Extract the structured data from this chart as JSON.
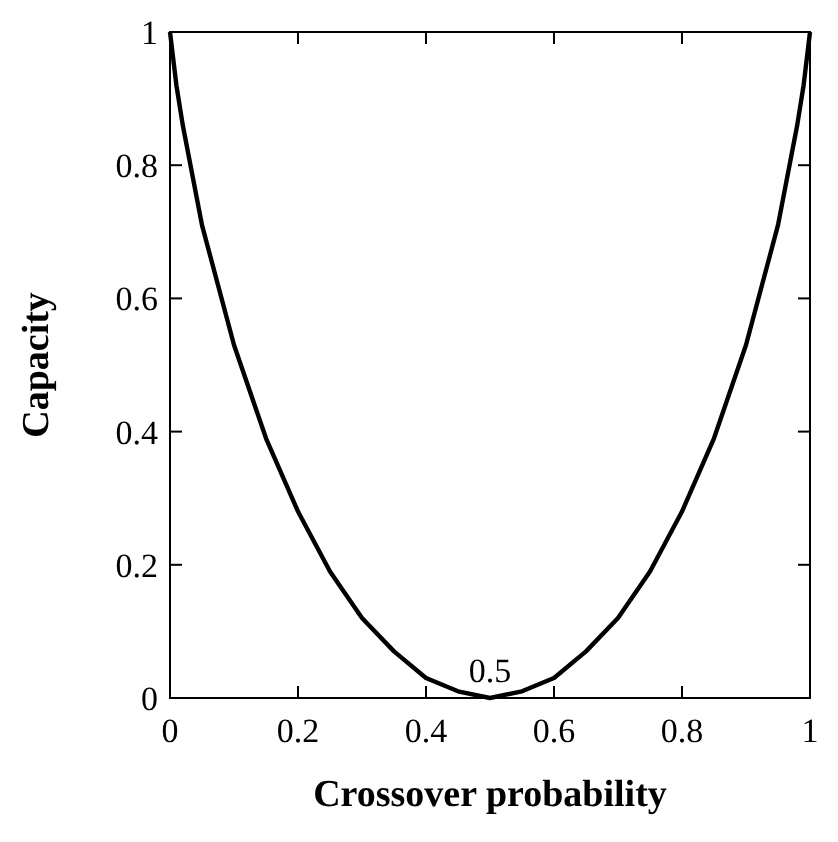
{
  "chart_data": {
    "type": "line",
    "xlabel": "Crossover probability",
    "ylabel": "Capacity",
    "x": [
      0,
      0.01,
      0.02,
      0.05,
      0.1,
      0.15,
      0.2,
      0.25,
      0.3,
      0.35,
      0.4,
      0.45,
      0.5,
      0.55,
      0.6,
      0.65,
      0.7,
      0.75,
      0.8,
      0.85,
      0.9,
      0.95,
      0.98,
      0.99,
      1
    ],
    "series": [
      {
        "color": "#000000",
        "values": [
          1,
          0.92,
          0.86,
          0.71,
          0.53,
          0.39,
          0.28,
          0.19,
          0.12,
          0.07,
          0.03,
          0.01,
          0,
          0.01,
          0.03,
          0.07,
          0.12,
          0.19,
          0.28,
          0.39,
          0.53,
          0.71,
          0.86,
          0.92,
          1
        ]
      }
    ],
    "xlim": [
      0,
      1
    ],
    "ylim": [
      0,
      1
    ],
    "xticks": [
      0,
      0.2,
      0.4,
      0.6,
      0.8,
      1
    ],
    "yticks": [
      0,
      0.2,
      0.4,
      0.6,
      0.8,
      1
    ],
    "grid": false,
    "marker": "none",
    "line_style": "solid",
    "annotations": [
      {
        "text": "0.5",
        "x": 0.5,
        "y": 0
      }
    ]
  }
}
